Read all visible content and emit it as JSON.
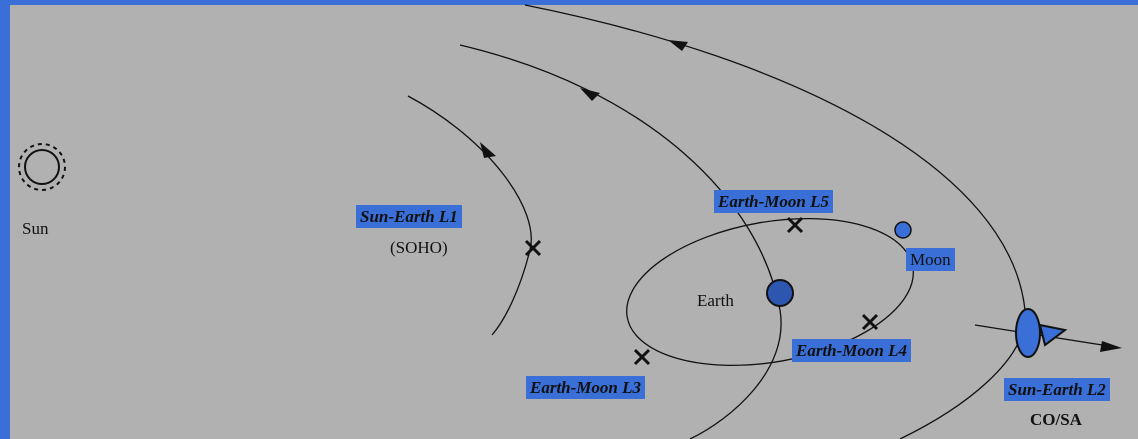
{
  "nodes": [
    {
      "label": "Sun"
    },
    {
      "label": "Sun-Earth L1"
    },
    {
      "label": "(SOHO)"
    },
    {
      "label": "Earth-Moon L5"
    },
    {
      "label": "Moon"
    },
    {
      "label": "Earth"
    },
    {
      "label": "Earth-Moon L4"
    },
    {
      "label": "Earth-Moon L3"
    },
    {
      "label": "Sun-Earth L2"
    },
    {
      "label": "CO/SA"
    }
  ]
}
